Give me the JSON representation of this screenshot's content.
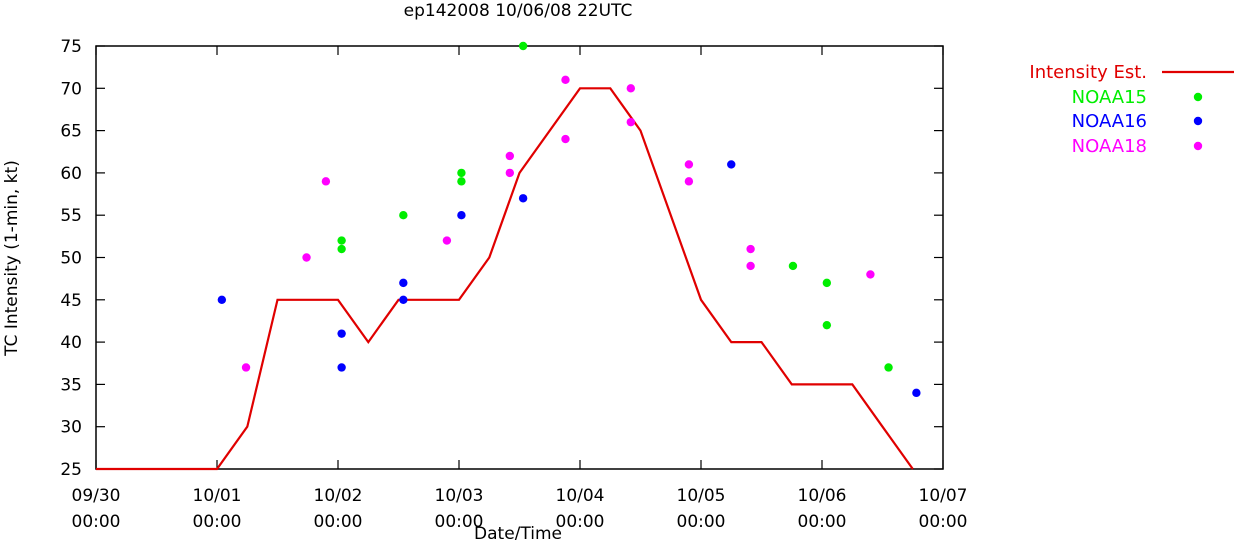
{
  "chart_data": {
    "type": "line+scatter",
    "title": "ep142008 10/06/08 22UTC",
    "xlabel": "Date/Time",
    "ylabel": "TC Intensity (1-min, kt)",
    "xlim_days": [
      0,
      7
    ],
    "ylim": [
      25,
      75
    ],
    "yticks": [
      25,
      30,
      35,
      40,
      45,
      50,
      55,
      60,
      65,
      70,
      75
    ],
    "xticks": [
      {
        "x": 0,
        "date": "09/30",
        "time": "00:00"
      },
      {
        "x": 1,
        "date": "10/01",
        "time": "00:00"
      },
      {
        "x": 2,
        "date": "10/02",
        "time": "00:00"
      },
      {
        "x": 3,
        "date": "10/03",
        "time": "00:00"
      },
      {
        "x": 4,
        "date": "10/04",
        "time": "00:00"
      },
      {
        "x": 5,
        "date": "10/05",
        "time": "00:00"
      },
      {
        "x": 6,
        "date": "10/06",
        "time": "00:00"
      },
      {
        "x": 7,
        "date": "10/07",
        "time": "00:00"
      }
    ],
    "x_units": "days since 09/30 00:00",
    "series": [
      {
        "name": "Intensity Est.",
        "kind": "line",
        "color": "#e00000",
        "points": [
          [
            0,
            25
          ],
          [
            1,
            25
          ],
          [
            1.25,
            30
          ],
          [
            1.5,
            45
          ],
          [
            2,
            45
          ],
          [
            2.25,
            40
          ],
          [
            2.5,
            45
          ],
          [
            3,
            45
          ],
          [
            3.25,
            50
          ],
          [
            3.5,
            60
          ],
          [
            4,
            70
          ],
          [
            4.25,
            70
          ],
          [
            4.5,
            65
          ],
          [
            5,
            45
          ],
          [
            5.25,
            40
          ],
          [
            5.5,
            40
          ],
          [
            5.75,
            35
          ],
          [
            6,
            35
          ],
          [
            6.25,
            35
          ],
          [
            6.5,
            30
          ],
          [
            6.75,
            25
          ]
        ]
      },
      {
        "name": "NOAA15",
        "kind": "scatter",
        "color": "#00ee00",
        "points": [
          [
            2.03,
            52
          ],
          [
            2.03,
            51
          ],
          [
            2.54,
            55
          ],
          [
            3.02,
            60
          ],
          [
            3.02,
            59
          ],
          [
            3.53,
            75
          ],
          [
            5.76,
            49
          ],
          [
            6.04,
            47
          ],
          [
            6.04,
            42
          ],
          [
            6.55,
            37
          ]
        ]
      },
      {
        "name": "NOAA16",
        "kind": "scatter",
        "color": "#0000ff",
        "points": [
          [
            1.04,
            45
          ],
          [
            2.03,
            41
          ],
          [
            2.03,
            37
          ],
          [
            2.54,
            47
          ],
          [
            2.54,
            45
          ],
          [
            3.02,
            55
          ],
          [
            3.53,
            57
          ],
          [
            5.25,
            61
          ],
          [
            6.78,
            34
          ]
        ]
      },
      {
        "name": "NOAA18",
        "kind": "scatter",
        "color": "#ff00ff",
        "points": [
          [
            1.24,
            37
          ],
          [
            1.74,
            50
          ],
          [
            1.9,
            59
          ],
          [
            2.9,
            52
          ],
          [
            3.42,
            62
          ],
          [
            3.42,
            60
          ],
          [
            3.88,
            71
          ],
          [
            3.88,
            64
          ],
          [
            4.42,
            70
          ],
          [
            4.42,
            66
          ],
          [
            4.9,
            61
          ],
          [
            4.9,
            59
          ],
          [
            5.41,
            51
          ],
          [
            5.41,
            49
          ],
          [
            6.4,
            48
          ]
        ]
      }
    ]
  }
}
